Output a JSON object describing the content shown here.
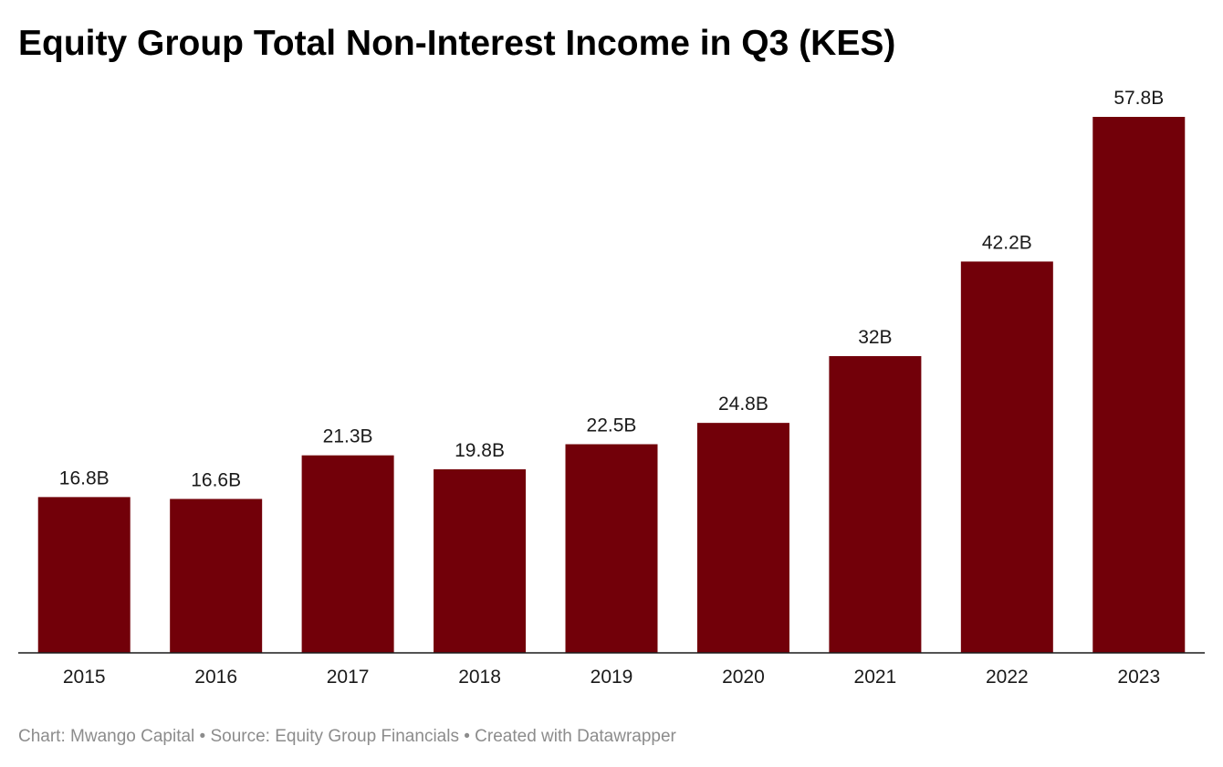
{
  "chart_data": {
    "type": "bar",
    "title": "Equity Group Total Non-Interest Income in Q3 (KES)",
    "categories": [
      "2015",
      "2016",
      "2017",
      "2018",
      "2019",
      "2020",
      "2021",
      "2022",
      "2023"
    ],
    "values": [
      16.8,
      16.6,
      21.3,
      19.8,
      22.5,
      24.8,
      32,
      42.2,
      57.8
    ],
    "value_labels": [
      "16.8B",
      "16.6B",
      "21.3B",
      "19.8B",
      "22.5B",
      "24.8B",
      "32B",
      "42.2B",
      "57.8B"
    ],
    "xlabel": "",
    "ylabel": "",
    "ylim": [
      0,
      57.8
    ],
    "grid": false,
    "legend": "none",
    "bar_color": "#720009"
  },
  "footer": {
    "credit": "Chart: Mwango Capital",
    "separator_1": "•",
    "source": "Source: Equity Group Financials",
    "separator_2": "•",
    "created_with": "Created with Datawrapper"
  }
}
